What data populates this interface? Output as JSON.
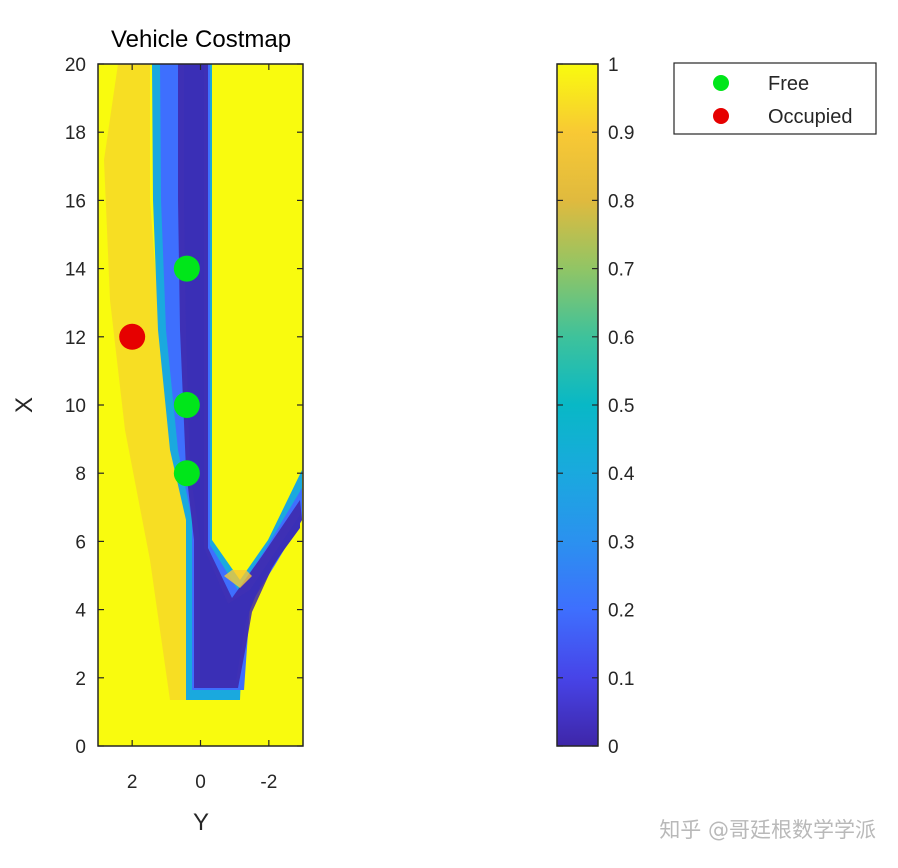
{
  "chart_data": {
    "type": "heatmap",
    "title": "Vehicle Costmap",
    "xlabel": "Y",
    "ylabel": "X",
    "xlim": [
      3,
      -3
    ],
    "ylim": [
      0,
      20
    ],
    "x_reversed": true,
    "x_ticks": [
      2,
      0,
      -2
    ],
    "y_ticks": [
      0,
      2,
      4,
      6,
      8,
      10,
      12,
      14,
      16,
      18,
      20
    ],
    "colorbar": {
      "range": [
        0,
        1
      ],
      "ticks": [
        0,
        0.1,
        0.2,
        0.3,
        0.4,
        0.5,
        0.6,
        0.7,
        0.8,
        0.9,
        1
      ],
      "colormap": "parula"
    },
    "free_points": [
      {
        "y": 0.4,
        "x": 14
      },
      {
        "y": 0.4,
        "x": 10
      },
      {
        "y": 0.4,
        "x": 8
      }
    ],
    "occupied_points": [
      {
        "y": 2.0,
        "x": 12
      }
    ],
    "legend": {
      "placement": "top-right",
      "entries": [
        {
          "label": "Free",
          "color": "#00e61a"
        },
        {
          "label": "Occupied",
          "color": "#e60000"
        }
      ]
    },
    "colors": {
      "free": "#00e61a",
      "occupied": "#e60000",
      "high_cost": "#f9fb0e",
      "low_cost": "#3e26a8"
    }
  },
  "watermark": "知乎 @哥廷根数学学派"
}
